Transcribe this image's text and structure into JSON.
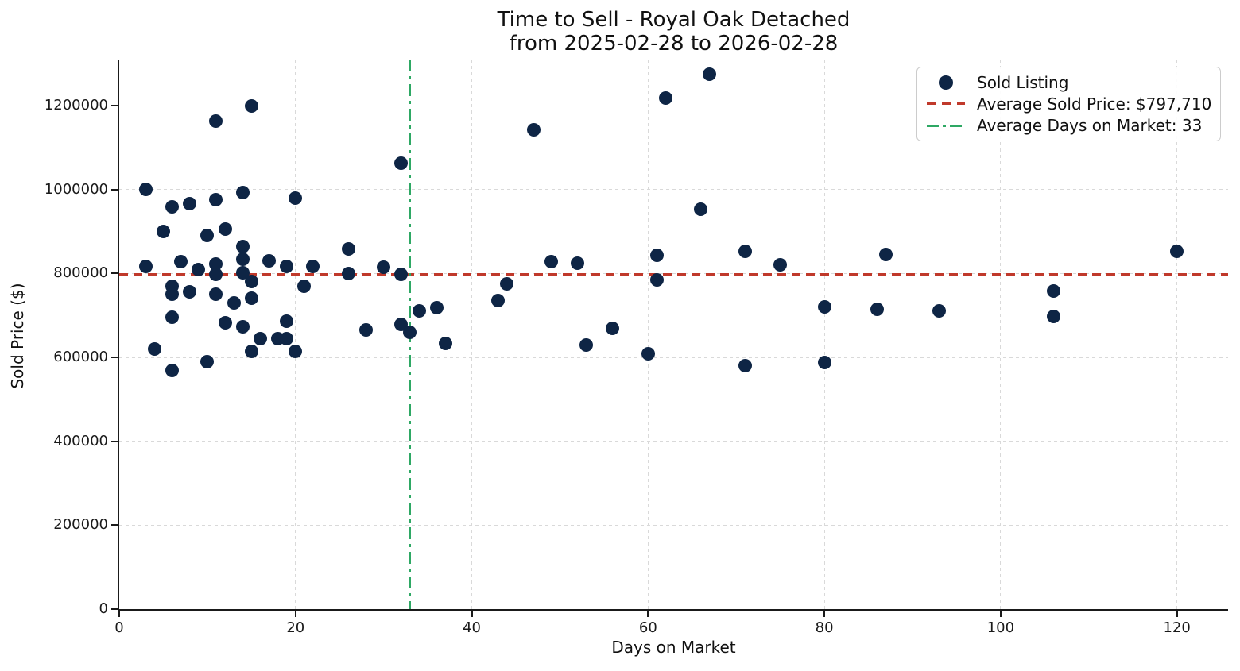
{
  "title": {
    "line1": "Time to Sell - Royal Oak Detached",
    "line2": "from 2025-02-28 to 2026-02-28"
  },
  "axes": {
    "x_label": "Days on Market",
    "y_label": "Sold Price ($)",
    "x_ticks": [
      0,
      20,
      40,
      60,
      80,
      100,
      120
    ],
    "y_ticks": [
      0,
      200000,
      400000,
      600000,
      800000,
      1000000,
      1200000
    ]
  },
  "legend": {
    "items": [
      {
        "label": "Sold Listing",
        "marker": "dot"
      },
      {
        "label": "Average Sold Price: $797,710",
        "marker": "dashed"
      },
      {
        "label": "Average Days on Market: 33",
        "marker": "dashdot"
      }
    ]
  },
  "colors": {
    "dot": "#0e2545",
    "avg_price_line": "#c0392b",
    "avg_days_line": "#2ea864",
    "grid": "#d9d9d9",
    "spine": "#1a1a1a"
  },
  "chart_data": {
    "type": "scatter",
    "title": "Time to Sell - Royal Oak Detached from 2025-02-28 to 2026-02-28",
    "xlabel": "Days on Market",
    "ylabel": "Sold Price ($)",
    "xlim": [
      0,
      125.8
    ],
    "ylim": [
      0,
      1310000
    ],
    "grid": true,
    "legend_position": "upper right",
    "avg_sold_price": 797710,
    "avg_days_on_market": 33,
    "series": [
      {
        "name": "Sold Listing",
        "points": [
          [
            3,
            1000000
          ],
          [
            15,
            1200000
          ],
          [
            11,
            1163000
          ],
          [
            6,
            958000
          ],
          [
            8,
            967000
          ],
          [
            11,
            975000
          ],
          [
            14,
            992000
          ],
          [
            20,
            980000
          ],
          [
            5,
            900000
          ],
          [
            10,
            890000
          ],
          [
            12,
            905000
          ],
          [
            14,
            865000
          ],
          [
            26,
            858000
          ],
          [
            3,
            817000
          ],
          [
            7,
            828000
          ],
          [
            9,
            810000
          ],
          [
            11,
            822000
          ],
          [
            11,
            798000
          ],
          [
            14,
            833000
          ],
          [
            14,
            802000
          ],
          [
            17,
            830000
          ],
          [
            19,
            817000
          ],
          [
            22,
            817000
          ],
          [
            26,
            800000
          ],
          [
            15,
            780000
          ],
          [
            21,
            770000
          ],
          [
            6,
            770000
          ],
          [
            6,
            750000
          ],
          [
            8,
            756000
          ],
          [
            11,
            751000
          ],
          [
            15,
            741000
          ],
          [
            13,
            730000
          ],
          [
            6,
            695000
          ],
          [
            12,
            683000
          ],
          [
            14,
            673000
          ],
          [
            19,
            686000
          ],
          [
            28,
            665000
          ],
          [
            16,
            645000
          ],
          [
            18,
            645000
          ],
          [
            19,
            644000
          ],
          [
            15,
            614000
          ],
          [
            20,
            614000
          ],
          [
            4,
            620000
          ],
          [
            10,
            590000
          ],
          [
            6,
            568000
          ],
          [
            32,
            1063000
          ],
          [
            47,
            1143000
          ],
          [
            62,
            1218000
          ],
          [
            67,
            1275000
          ],
          [
            66,
            953000
          ],
          [
            30,
            815000
          ],
          [
            32,
            797000
          ],
          [
            49,
            829000
          ],
          [
            52,
            824000
          ],
          [
            61,
            843000
          ],
          [
            61,
            785000
          ],
          [
            71,
            853000
          ],
          [
            44,
            775000
          ],
          [
            43,
            735000
          ],
          [
            34,
            710000
          ],
          [
            36,
            718000
          ],
          [
            32,
            678000
          ],
          [
            33,
            660000
          ],
          [
            37,
            633000
          ],
          [
            53,
            630000
          ],
          [
            56,
            670000
          ],
          [
            60,
            608000
          ],
          [
            71,
            580000
          ],
          [
            75,
            820000
          ],
          [
            87,
            845000
          ],
          [
            80,
            720000
          ],
          [
            86,
            715000
          ],
          [
            93,
            710000
          ],
          [
            106,
            758000
          ],
          [
            106,
            698000
          ],
          [
            120,
            852000
          ],
          [
            80,
            588000
          ]
        ]
      }
    ]
  }
}
